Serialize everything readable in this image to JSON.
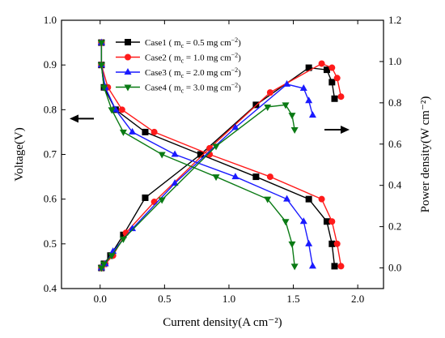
{
  "chart_data": {
    "type": "line",
    "xlabel": "Current density(A cm⁻²)",
    "ylabel_left": "Voltage(V)",
    "ylabel_right": "Power density(W cm⁻²)",
    "xlim": [
      -0.3,
      2.2
    ],
    "ylim_left": [
      0.4,
      1.0
    ],
    "ylim_right": [
      -0.1,
      1.2
    ],
    "x_ticks": [
      "0.0",
      "0.5",
      "1.0",
      "1.5",
      "2.0"
    ],
    "y_left_ticks": [
      "0.4",
      "0.5",
      "0.6",
      "0.7",
      "0.8",
      "0.9",
      "1.0"
    ],
    "y_right_ticks": [
      "0.0",
      "0.2",
      "0.4",
      "0.6",
      "0.8",
      "1.0",
      "1.2"
    ],
    "legend_position": "top-center",
    "series": [
      {
        "name": "Case1 ( m",
        "name_sub": "c",
        "name_rest": " = 0.5 mg cm",
        "name_sup": "−2",
        "name_end": ")",
        "color": "#000000",
        "marker": "square",
        "polarization": [
          [
            0.01,
            0.95
          ],
          [
            0.01,
            0.9
          ],
          [
            0.03,
            0.85
          ],
          [
            0.12,
            0.8
          ],
          [
            0.35,
            0.75
          ],
          [
            0.78,
            0.7
          ],
          [
            1.21,
            0.65
          ],
          [
            1.62,
            0.6
          ],
          [
            1.76,
            0.55
          ],
          [
            1.8,
            0.5
          ],
          [
            1.82,
            0.45
          ]
        ],
        "power": [
          [
            0.01,
            0.0
          ],
          [
            0.03,
            0.02
          ],
          [
            0.08,
            0.06
          ],
          [
            0.18,
            0.16
          ],
          [
            0.35,
            0.34
          ],
          [
            0.78,
            0.55
          ],
          [
            1.21,
            0.79
          ],
          [
            1.62,
            0.97
          ],
          [
            1.76,
            0.96
          ],
          [
            1.8,
            0.9
          ],
          [
            1.82,
            0.82
          ]
        ]
      },
      {
        "name": "Case2 ( m",
        "name_sub": "c",
        "name_rest": " = 1.0 mg cm",
        "name_sup": "−2",
        "name_end": ")",
        "color": "#ff1a1a",
        "marker": "circle",
        "polarization": [
          [
            0.01,
            0.95
          ],
          [
            0.01,
            0.9
          ],
          [
            0.06,
            0.85
          ],
          [
            0.17,
            0.8
          ],
          [
            0.42,
            0.75
          ],
          [
            0.85,
            0.7
          ],
          [
            1.32,
            0.65
          ],
          [
            1.72,
            0.6
          ],
          [
            1.8,
            0.55
          ],
          [
            1.84,
            0.5
          ],
          [
            1.87,
            0.45
          ]
        ],
        "power": [
          [
            0.01,
            0.0
          ],
          [
            0.04,
            0.02
          ],
          [
            0.1,
            0.06
          ],
          [
            0.2,
            0.17
          ],
          [
            0.42,
            0.32
          ],
          [
            0.85,
            0.58
          ],
          [
            1.32,
            0.85
          ],
          [
            1.72,
            0.99
          ],
          [
            1.8,
            0.97
          ],
          [
            1.84,
            0.92
          ],
          [
            1.87,
            0.83
          ]
        ]
      },
      {
        "name": "Case3 ( m",
        "name_sub": "c",
        "name_rest": " = 2.0 mg cm",
        "name_sup": "−2",
        "name_end": ")",
        "color": "#1a1aff",
        "marker": "triangle-up",
        "polarization": [
          [
            0.01,
            0.95
          ],
          [
            0.01,
            0.9
          ],
          [
            0.04,
            0.85
          ],
          [
            0.12,
            0.8
          ],
          [
            0.25,
            0.75
          ],
          [
            0.58,
            0.7
          ],
          [
            1.05,
            0.65
          ],
          [
            1.45,
            0.6
          ],
          [
            1.58,
            0.55
          ],
          [
            1.62,
            0.5
          ],
          [
            1.65,
            0.45
          ]
        ],
        "power": [
          [
            0.01,
            0.0
          ],
          [
            0.04,
            0.02
          ],
          [
            0.1,
            0.08
          ],
          [
            0.25,
            0.19
          ],
          [
            0.58,
            0.41
          ],
          [
            1.05,
            0.68
          ],
          [
            1.45,
            0.89
          ],
          [
            1.58,
            0.87
          ],
          [
            1.62,
            0.81
          ],
          [
            1.65,
            0.74
          ]
        ],
        "power_peak": [
          [
            1.48,
            0.91
          ]
        ]
      },
      {
        "name": "Case4 ( m",
        "name_sub": "c",
        "name_rest": " = 3.0 mg cm",
        "name_sup": "−2",
        "name_end": ")",
        "color": "#0a7a14",
        "marker": "triangle-down",
        "polarization": [
          [
            0.01,
            0.95
          ],
          [
            0.01,
            0.9
          ],
          [
            0.03,
            0.85
          ],
          [
            0.09,
            0.8
          ],
          [
            0.18,
            0.75
          ],
          [
            0.48,
            0.7
          ],
          [
            0.9,
            0.65
          ],
          [
            1.3,
            0.6
          ],
          [
            1.44,
            0.55
          ],
          [
            1.49,
            0.5
          ],
          [
            1.51,
            0.45
          ]
        ],
        "power": [
          [
            0.01,
            0.0
          ],
          [
            0.03,
            0.02
          ],
          [
            0.09,
            0.06
          ],
          [
            0.18,
            0.14
          ],
          [
            0.48,
            0.33
          ],
          [
            0.9,
            0.59
          ],
          [
            1.3,
            0.78
          ],
          [
            1.44,
            0.79
          ],
          [
            1.49,
            0.74
          ],
          [
            1.51,
            0.67
          ]
        ]
      }
    ],
    "arrows": [
      {
        "direction": "left",
        "points_to": "left-axis"
      },
      {
        "direction": "right",
        "points_to": "right-axis"
      }
    ]
  }
}
